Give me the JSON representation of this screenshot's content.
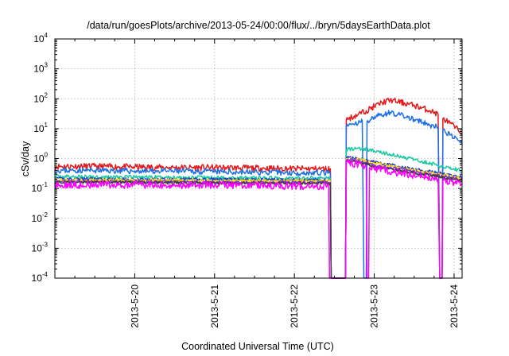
{
  "chart_data": {
    "type": "line",
    "title": "/data/run/goesPlots/archive/2013-05-24/00:00/flux/../bryn/5daysEarthData.plot",
    "xlabel": "Coordinated Universal Time (UTC)",
    "ylabel": "cSv/day",
    "yscale": "log",
    "ylim": [
      0.0001,
      10000
    ],
    "xlim": [
      0.0,
      5.1
    ],
    "grid": true,
    "legend": "none",
    "x_unit": "days since 2013-05-19 00:00 UTC",
    "y_ticks": [
      {
        "base": "10",
        "exp": "-4",
        "value": 0.0001
      },
      {
        "base": "10",
        "exp": "-3",
        "value": 0.001
      },
      {
        "base": "10",
        "exp": "-2",
        "value": 0.01
      },
      {
        "base": "10",
        "exp": "-1",
        "value": 0.1
      },
      {
        "base": "10",
        "exp": "0",
        "value": 1
      },
      {
        "base": "10",
        "exp": "1",
        "value": 10
      },
      {
        "base": "10",
        "exp": "2",
        "value": 100
      },
      {
        "base": "10",
        "exp": "3",
        "value": 1000
      },
      {
        "base": "10",
        "exp": "4",
        "value": 10000
      }
    ],
    "x_ticks": [
      {
        "label": "2013-5-20",
        "value": 1.0
      },
      {
        "label": "2013-5-21",
        "value": 2.0
      },
      {
        "label": "2013-5-22",
        "value": 3.0
      },
      {
        "label": "2013-5-23",
        "value": 4.0
      },
      {
        "label": "2013-5-24",
        "value": 5.0
      }
    ],
    "series": [
      {
        "color": "#e41a1c",
        "seed": 11,
        "noise": 0.1,
        "values": [
          [
            0,
            0.55
          ],
          [
            0.5,
            0.55
          ],
          [
            1.0,
            0.52
          ],
          [
            1.5,
            0.5
          ],
          [
            2.0,
            0.5
          ],
          [
            2.5,
            0.48
          ],
          [
            3.0,
            0.46
          ],
          [
            3.45,
            0.45
          ],
          [
            3.46,
            0.0001
          ],
          [
            3.64,
            0.0001
          ],
          [
            3.65,
            20
          ],
          [
            3.8,
            30
          ],
          [
            3.9,
            40
          ],
          [
            4.0,
            55
          ],
          [
            4.1,
            75
          ],
          [
            4.2,
            90
          ],
          [
            4.3,
            80
          ],
          [
            4.5,
            60
          ],
          [
            4.7,
            40
          ],
          [
            4.8,
            30
          ],
          [
            4.82,
            0.0001
          ],
          [
            4.85,
            0.0001
          ],
          [
            4.86,
            22
          ],
          [
            4.95,
            15
          ],
          [
            5.05,
            9
          ],
          [
            5.1,
            7
          ]
        ]
      },
      {
        "color": "#1f6fe8",
        "seed": 23,
        "noise": 0.09,
        "values": [
          [
            0,
            0.4
          ],
          [
            0.5,
            0.4
          ],
          [
            1.0,
            0.38
          ],
          [
            1.5,
            0.38
          ],
          [
            2.0,
            0.36
          ],
          [
            2.5,
            0.35
          ],
          [
            3.0,
            0.33
          ],
          [
            3.45,
            0.33
          ],
          [
            3.46,
            0.0001
          ],
          [
            3.64,
            0.0001
          ],
          [
            3.65,
            12
          ],
          [
            3.8,
            15
          ],
          [
            3.85,
            18
          ],
          [
            3.87,
            0.0001
          ],
          [
            3.9,
            0.0001
          ],
          [
            3.91,
            18
          ],
          [
            4.0,
            25
          ],
          [
            4.2,
            35
          ],
          [
            4.3,
            30
          ],
          [
            4.5,
            20
          ],
          [
            4.7,
            13
          ],
          [
            4.8,
            11
          ],
          [
            4.82,
            0.0001
          ],
          [
            4.85,
            0.0001
          ],
          [
            4.86,
            9
          ],
          [
            4.95,
            6
          ],
          [
            5.05,
            4
          ],
          [
            5.1,
            3
          ]
        ]
      },
      {
        "color": "#19c9a0",
        "seed": 37,
        "noise": 0.06,
        "values": [
          [
            0,
            0.25
          ],
          [
            1.0,
            0.24
          ],
          [
            2.0,
            0.23
          ],
          [
            3.0,
            0.22
          ],
          [
            3.45,
            0.22
          ],
          [
            3.46,
            0.0001
          ],
          [
            3.64,
            0.0001
          ],
          [
            3.65,
            2.0
          ],
          [
            3.8,
            2.2
          ],
          [
            4.0,
            1.8
          ],
          [
            4.3,
            1.2
          ],
          [
            4.6,
            0.8
          ],
          [
            4.8,
            0.6
          ],
          [
            5.0,
            0.45
          ],
          [
            5.1,
            0.38
          ]
        ]
      },
      {
        "color": "#1a3cc8",
        "seed": 41,
        "noise": 0.05,
        "values": [
          [
            0,
            0.21
          ],
          [
            1.0,
            0.2
          ],
          [
            2.0,
            0.2
          ],
          [
            3.0,
            0.19
          ],
          [
            3.45,
            0.19
          ],
          [
            3.46,
            0.0001
          ],
          [
            3.64,
            0.0001
          ],
          [
            3.65,
            1.1
          ],
          [
            3.8,
            1.0
          ],
          [
            4.0,
            0.75
          ],
          [
            4.3,
            0.55
          ],
          [
            4.6,
            0.4
          ],
          [
            4.8,
            0.33
          ],
          [
            5.0,
            0.27
          ],
          [
            5.1,
            0.24
          ]
        ]
      },
      {
        "color": "#ffd700",
        "seed": 53,
        "noise": 0.05,
        "values": [
          [
            0,
            0.19
          ],
          [
            1.0,
            0.19
          ],
          [
            2.0,
            0.18
          ],
          [
            3.0,
            0.18
          ],
          [
            3.45,
            0.18
          ],
          [
            3.46,
            0.0001
          ],
          [
            3.64,
            0.0001
          ],
          [
            3.65,
            1.0
          ],
          [
            3.8,
            0.95
          ],
          [
            4.0,
            0.7
          ],
          [
            4.3,
            0.5
          ],
          [
            4.6,
            0.36
          ],
          [
            4.8,
            0.3
          ],
          [
            5.0,
            0.24
          ],
          [
            5.1,
            0.21
          ]
        ]
      },
      {
        "color": "#8a2be2",
        "seed": 67,
        "noise": 0.05,
        "values": [
          [
            0,
            0.17
          ],
          [
            1.0,
            0.17
          ],
          [
            2.0,
            0.16
          ],
          [
            3.0,
            0.16
          ],
          [
            3.45,
            0.16
          ],
          [
            3.46,
            0.0001
          ],
          [
            3.64,
            0.0001
          ],
          [
            3.65,
            0.9
          ],
          [
            3.8,
            0.85
          ],
          [
            4.0,
            0.6
          ],
          [
            4.3,
            0.45
          ],
          [
            4.6,
            0.32
          ],
          [
            4.8,
            0.27
          ],
          [
            5.0,
            0.22
          ],
          [
            5.1,
            0.19
          ]
        ]
      },
      {
        "color": "#3d3d3d",
        "seed": 71,
        "noise": 0.05,
        "values": [
          [
            0,
            0.16
          ],
          [
            1.0,
            0.16
          ],
          [
            2.0,
            0.15
          ],
          [
            3.0,
            0.15
          ],
          [
            3.45,
            0.15
          ],
          [
            3.46,
            0.0001
          ],
          [
            3.64,
            0.0001
          ],
          [
            3.65,
            0.8
          ],
          [
            3.8,
            0.75
          ],
          [
            4.0,
            0.55
          ],
          [
            4.3,
            0.4
          ],
          [
            4.6,
            0.3
          ],
          [
            4.8,
            0.25
          ],
          [
            5.0,
            0.2
          ],
          [
            5.1,
            0.18
          ]
        ]
      },
      {
        "color": "#ff00ff",
        "seed": 89,
        "noise": 0.12,
        "values": [
          [
            0,
            0.13
          ],
          [
            0.5,
            0.13
          ],
          [
            1.0,
            0.13
          ],
          [
            1.5,
            0.13
          ],
          [
            2.0,
            0.13
          ],
          [
            2.5,
            0.13
          ],
          [
            3.0,
            0.12
          ],
          [
            3.43,
            0.12
          ],
          [
            3.44,
            0.0001
          ],
          [
            3.64,
            0.0001
          ],
          [
            3.65,
            0.7
          ],
          [
            3.8,
            0.65
          ],
          [
            3.9,
            0.5
          ],
          [
            3.91,
            0.0001
          ],
          [
            3.93,
            0.0001
          ],
          [
            3.94,
            0.5
          ],
          [
            4.0,
            0.45
          ],
          [
            4.3,
            0.33
          ],
          [
            4.6,
            0.25
          ],
          [
            4.8,
            0.2
          ],
          [
            4.82,
            0.0001
          ],
          [
            4.85,
            0.0001
          ],
          [
            4.86,
            0.18
          ],
          [
            5.0,
            0.16
          ],
          [
            5.1,
            0.14
          ]
        ]
      }
    ]
  }
}
